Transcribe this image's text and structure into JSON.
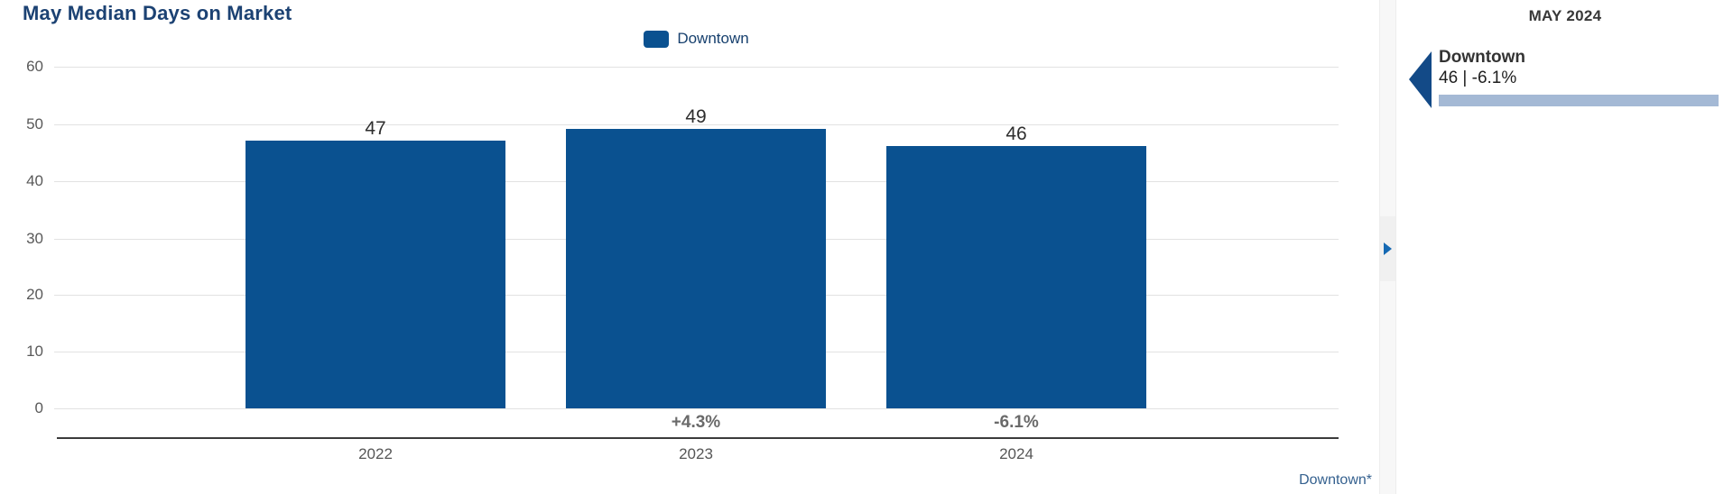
{
  "chart_data": {
    "type": "bar",
    "title": "May Median Days on Market",
    "categories": [
      "2022",
      "2023",
      "2024"
    ],
    "series": [
      {
        "name": "Downtown",
        "values": [
          47,
          49,
          46
        ]
      }
    ],
    "pct_change_labels": [
      "",
      "+4.3%",
      "-6.1%"
    ],
    "yticks": [
      60,
      50,
      40,
      30,
      20,
      10,
      0
    ],
    "ylim": [
      0,
      60
    ],
    "grid": true,
    "legend_position": "top-center",
    "bar_color": "#0a5190"
  },
  "chart": {
    "footnote": "Downtown*"
  },
  "panel": {
    "header": "MAY 2024",
    "items": [
      {
        "name": "Downtown",
        "stats": "46 | -6.1%",
        "bar_color": "#a4b9d5",
        "arrow_color": "#134a87"
      }
    ]
  },
  "colors": {
    "bar_blue": "#0a5190",
    "title_navy": "#1c4273",
    "legend_navy": "#17406e",
    "pct_gray": "#6a6a6a",
    "footnote_blue": "#35618f",
    "toggle_arrow_blue": "#1569b3",
    "panel_bar_light_blue": "#a4b9d5"
  }
}
